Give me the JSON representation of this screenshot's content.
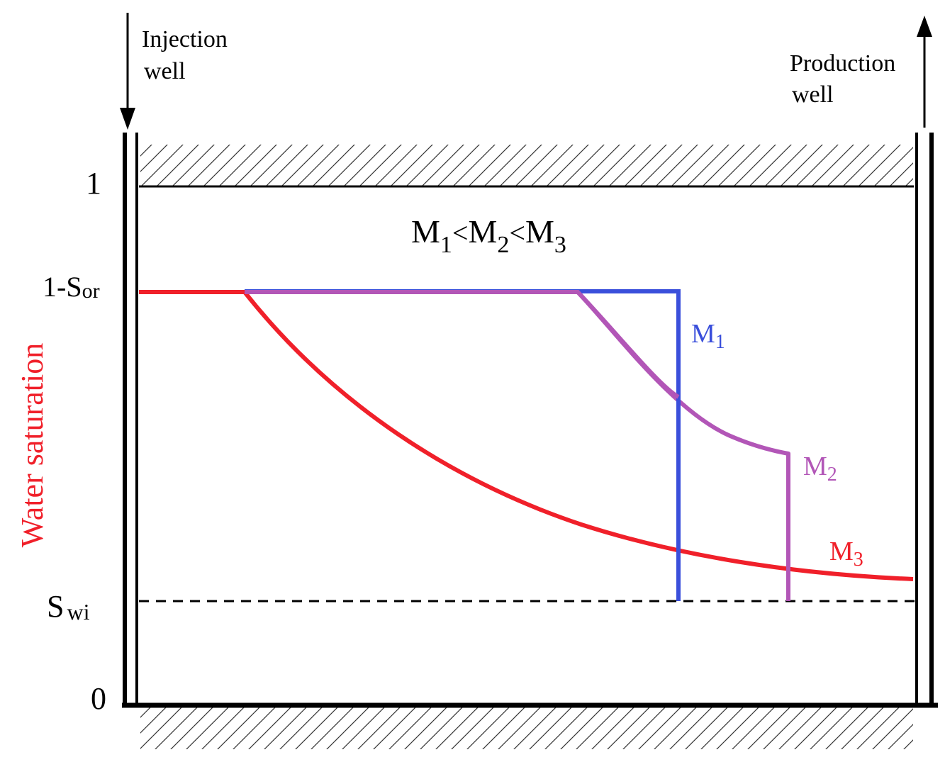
{
  "wells": {
    "injection": {
      "line1": "Injection",
      "line2": "well"
    },
    "production": {
      "line1": "Production",
      "line2": "well"
    }
  },
  "axis": {
    "ylabel": "Water saturation",
    "ticks": {
      "one": "1",
      "sor_prefix": "1-S",
      "sor_sub": "or",
      "swi_main": "S",
      "swi_sub": "wi",
      "zero": "0"
    }
  },
  "relation": {
    "m": "M",
    "s1": "1",
    "s2": "2",
    "s3": "3",
    "lt": "<"
  },
  "curves": [
    {
      "id": "M1",
      "letter": "M",
      "sub": "1",
      "color": "#3a4fdb"
    },
    {
      "id": "M2",
      "letter": "M",
      "sub": "2",
      "color": "#b256b7"
    },
    {
      "id": "M3",
      "letter": "M",
      "sub": "3",
      "color": "#f0202a"
    }
  ],
  "colors": {
    "ink": "#000000",
    "ylabel": "#f0202a"
  }
}
